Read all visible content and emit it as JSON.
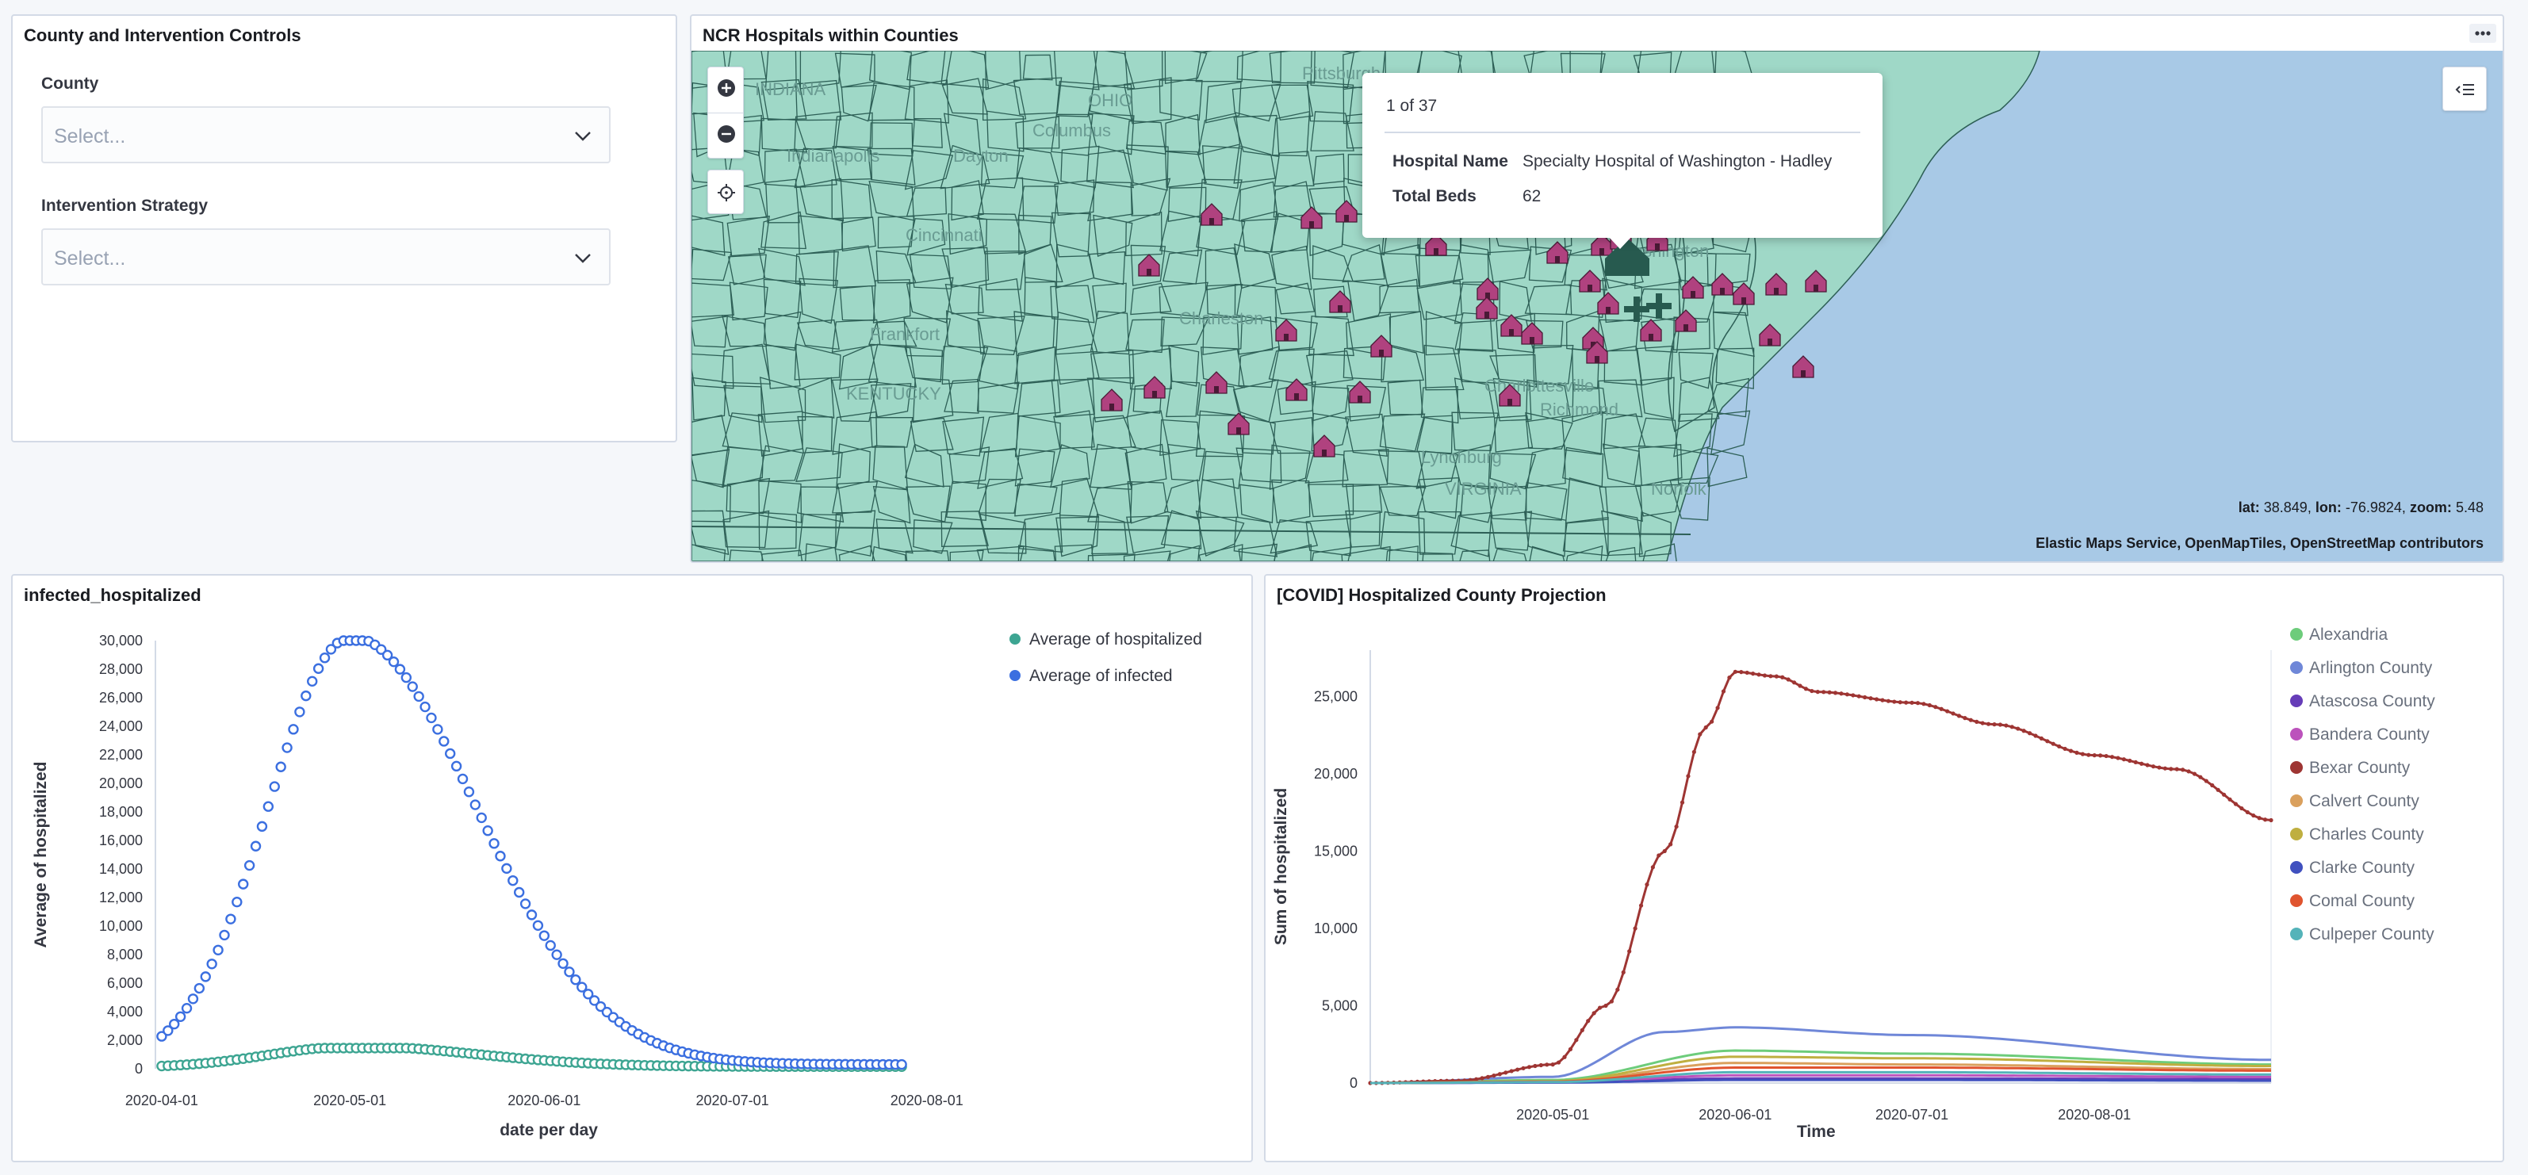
{
  "controls": {
    "title": "County and Intervention Controls",
    "county_label": "County",
    "county_placeholder": "Select...",
    "strategy_label": "Intervention Strategy",
    "strategy_placeholder": "Select..."
  },
  "map": {
    "title": "NCR Hospitals within Counties",
    "place_labels": [
      "INDIANA",
      "OHIO",
      "Columbus",
      "Indianapolis",
      "Dayton",
      "Cincinnati",
      "Frankfort",
      "Charleston",
      "KENTUCKY",
      "Charlottesville",
      "Lynchburg",
      "VIRGINIA",
      "Richmond",
      "Norfolk",
      "Pittsburgh",
      "Washington"
    ],
    "tooltip": {
      "count": "1 of 37",
      "rows": [
        {
          "key": "Hospital Name",
          "value": "Specialty Hospital of Washington - Hadley"
        },
        {
          "key": "Total Beds",
          "value": "62"
        }
      ]
    },
    "status_lat_label": "lat:",
    "status_lat": "38.849,",
    "status_lon_label": "lon:",
    "status_lon": "-76.9824,",
    "status_zoom_label": "zoom:",
    "status_zoom": "5.48",
    "attribution": "Elastic Maps Service, OpenMapTiles, OpenStreetMap contributors",
    "colors": {
      "land": "#9fd8c7",
      "water": "#a8c9e6",
      "hospital": "#b0427f",
      "selected": "#275a4f"
    }
  },
  "chart_data": [
    {
      "type": "scatter",
      "panel_title": "infected_hospitalized",
      "xlabel": "date per day",
      "ylabel": "Average of hospitalized",
      "x_ticks": [
        "2020-04-01",
        "2020-05-01",
        "2020-06-01",
        "2020-07-01",
        "2020-08-01"
      ],
      "y_ticks": [
        "0",
        "2,000",
        "4,000",
        "6,000",
        "8,000",
        "10,000",
        "12,000",
        "14,000",
        "16,000",
        "18,000",
        "20,000",
        "22,000",
        "24,000",
        "26,000",
        "28,000",
        "30,000"
      ],
      "xlim": [
        "2020-03-31",
        "2020-08-31"
      ],
      "ylim": [
        0,
        30000
      ],
      "legend_position": "top-right",
      "series": [
        {
          "name": "Average of hospitalized",
          "color": "#3da592",
          "peak_date": "2020-05-01",
          "peak_value": 1450
        },
        {
          "name": "Average of infected",
          "color": "#3b6fe0",
          "peak_date": "2020-05-01",
          "peak_value": 30000
        }
      ]
    },
    {
      "type": "line",
      "panel_title": "[COVID] Hospitalized County Projection",
      "xlabel": "Time",
      "ylabel": "Sum of hospitalized",
      "x_ticks": [
        "2020-05-01",
        "2020-06-01",
        "2020-07-01",
        "2020-08-01"
      ],
      "y_ticks": [
        "0",
        "5,000",
        "10,000",
        "15,000",
        "20,000",
        "25,000"
      ],
      "xlim": [
        "2020-03-31",
        "2020-08-31"
      ],
      "ylim": [
        0,
        28000
      ],
      "legend_position": "right",
      "series": [
        {
          "name": "Alexandria",
          "color": "#6dcc7b",
          "points": [
            [
              "2020-03-31",
              0
            ],
            [
              "2020-05-01",
              200
            ],
            [
              "2020-06-01",
              2100
            ],
            [
              "2020-07-01",
              1900
            ],
            [
              "2020-08-31",
              1200
            ]
          ]
        },
        {
          "name": "Arlington County",
          "color": "#6f87d8",
          "points": [
            [
              "2020-03-31",
              0
            ],
            [
              "2020-05-01",
              400
            ],
            [
              "2020-05-20",
              3300
            ],
            [
              "2020-06-01",
              3600
            ],
            [
              "2020-07-01",
              3100
            ],
            [
              "2020-08-31",
              1500
            ]
          ]
        },
        {
          "name": "Atascosa County",
          "color": "#663db8",
          "points": [
            [
              "2020-03-31",
              0
            ],
            [
              "2020-05-01",
              50
            ],
            [
              "2020-06-01",
              300
            ],
            [
              "2020-07-01",
              300
            ],
            [
              "2020-08-31",
              250
            ]
          ]
        },
        {
          "name": "Bandera County",
          "color": "#bc52bc",
          "points": [
            [
              "2020-03-31",
              0
            ],
            [
              "2020-05-01",
              40
            ],
            [
              "2020-06-01",
              500
            ],
            [
              "2020-07-01",
              500
            ],
            [
              "2020-08-31",
              400
            ]
          ]
        },
        {
          "name": "Bexar County",
          "color": "#9e3533",
          "points": [
            [
              "2020-03-31",
              0
            ],
            [
              "2020-04-15",
              150
            ],
            [
              "2020-05-01",
              1200
            ],
            [
              "2020-05-10",
              5000
            ],
            [
              "2020-05-20",
              15000
            ],
            [
              "2020-05-27",
              23000
            ],
            [
              "2020-06-01",
              26600
            ],
            [
              "2020-06-08",
              26300
            ],
            [
              "2020-06-15",
              25300
            ],
            [
              "2020-07-01",
              24600
            ],
            [
              "2020-07-15",
              23200
            ],
            [
              "2020-08-01",
              21200
            ],
            [
              "2020-08-15",
              20300
            ],
            [
              "2020-08-31",
              17000
            ]
          ]
        },
        {
          "name": "Calvert County",
          "color": "#daa05d",
          "points": [
            [
              "2020-03-31",
              0
            ],
            [
              "2020-05-01",
              100
            ],
            [
              "2020-06-01",
              1300
            ],
            [
              "2020-07-01",
              1200
            ],
            [
              "2020-08-31",
              900
            ]
          ]
        },
        {
          "name": "Charles County",
          "color": "#bfaf40",
          "points": [
            [
              "2020-03-31",
              0
            ],
            [
              "2020-05-01",
              120
            ],
            [
              "2020-06-01",
              1700
            ],
            [
              "2020-07-01",
              1600
            ],
            [
              "2020-08-31",
              1100
            ]
          ]
        },
        {
          "name": "Clarke County",
          "color": "#4050bf",
          "points": [
            [
              "2020-03-31",
              0
            ],
            [
              "2020-05-01",
              30
            ],
            [
              "2020-06-01",
              200
            ],
            [
              "2020-07-01",
              200
            ],
            [
              "2020-08-31",
              150
            ]
          ]
        },
        {
          "name": "Comal County",
          "color": "#e0542f",
          "points": [
            [
              "2020-03-31",
              0
            ],
            [
              "2020-05-01",
              90
            ],
            [
              "2020-06-01",
              1000
            ],
            [
              "2020-07-01",
              1000
            ],
            [
              "2020-08-31",
              800
            ]
          ]
        },
        {
          "name": "Culpeper County",
          "color": "#54b3b9",
          "points": [
            [
              "2020-03-31",
              0
            ],
            [
              "2020-05-01",
              60
            ],
            [
              "2020-06-01",
              700
            ],
            [
              "2020-07-01",
              700
            ],
            [
              "2020-08-31",
              550
            ]
          ]
        }
      ]
    }
  ]
}
